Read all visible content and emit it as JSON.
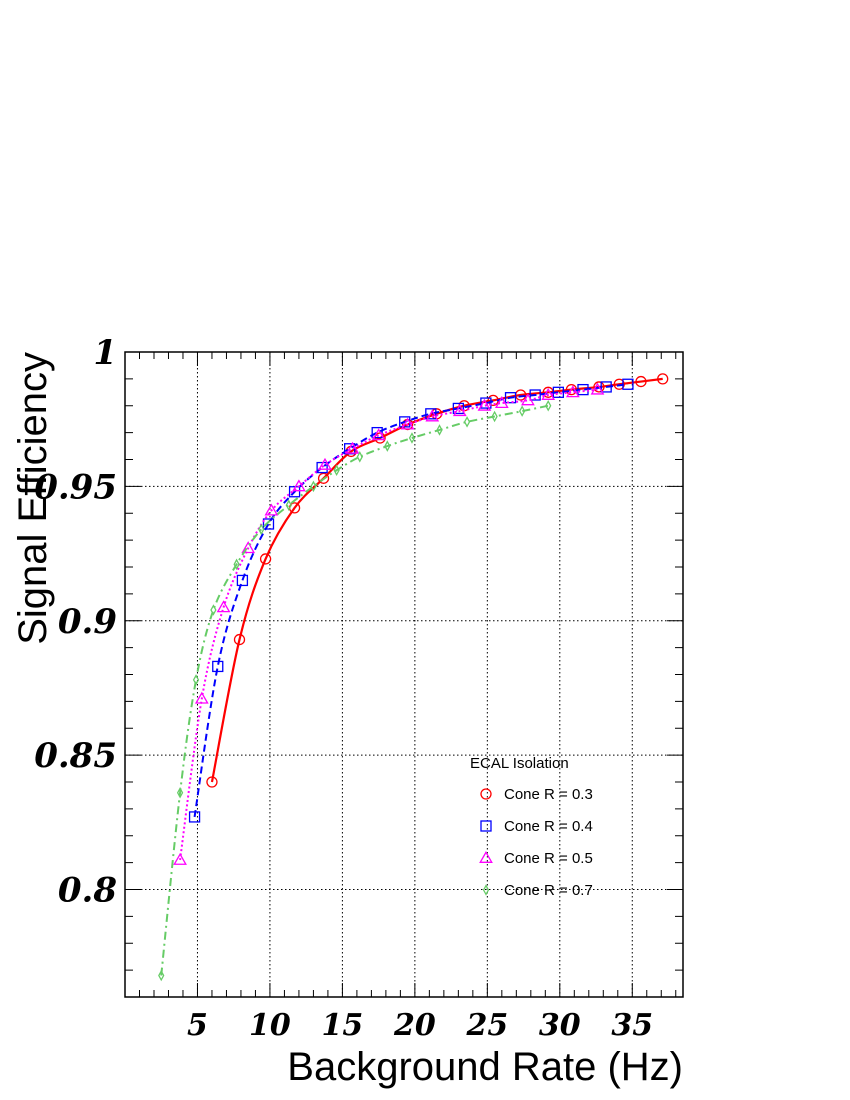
{
  "chart_data": {
    "type": "line",
    "title": "",
    "xlabel": "Background Rate (Hz)",
    "ylabel": "Signal Efficiency",
    "xlim": [
      0,
      38.5
    ],
    "ylim": [
      0.76,
      1.0
    ],
    "x_ticks": [
      5,
      10,
      15,
      20,
      25,
      30,
      35
    ],
    "x_tick_labels": [
      "5",
      "10",
      "15",
      "20",
      "25",
      "30",
      "35"
    ],
    "y_ticks": [
      0.8,
      0.85,
      0.9,
      0.95,
      1.0
    ],
    "y_tick_labels": [
      "0.8",
      "0.85",
      "0.9",
      "0.95",
      "1"
    ],
    "grid": true,
    "legend": {
      "title": "ECAL Isolation",
      "placement": "bottom-right"
    },
    "series": [
      {
        "name": "Cone R = 0.3",
        "color": "#ff0000",
        "marker": "circle",
        "line_style": "solid",
        "x": [
          6.0,
          7.9,
          9.7,
          11.7,
          13.7,
          15.6,
          17.6,
          19.5,
          21.5,
          23.4,
          25.4,
          27.3,
          29.2,
          30.8,
          32.7,
          34.1,
          35.6,
          37.1
        ],
        "y": [
          0.84,
          0.893,
          0.923,
          0.942,
          0.953,
          0.963,
          0.968,
          0.973,
          0.977,
          0.98,
          0.982,
          0.984,
          0.985,
          0.986,
          0.987,
          0.988,
          0.989,
          0.99
        ]
      },
      {
        "name": "Cone R = 0.4",
        "color": "#0000ff",
        "marker": "square",
        "line_style": "dashed",
        "x": [
          4.8,
          6.4,
          8.1,
          9.9,
          11.7,
          13.6,
          15.5,
          17.4,
          19.3,
          21.1,
          23.0,
          24.9,
          26.6,
          28.3,
          29.9,
          31.6,
          33.2,
          34.7
        ],
        "y": [
          0.827,
          0.883,
          0.915,
          0.936,
          0.948,
          0.957,
          0.964,
          0.97,
          0.974,
          0.977,
          0.979,
          0.981,
          0.983,
          0.984,
          0.985,
          0.986,
          0.987,
          0.988
        ]
      },
      {
        "name": "Cone R = 0.5",
        "color": "#ff00ff",
        "marker": "triangle",
        "line_style": "dotted",
        "x": [
          3.8,
          5.3,
          6.8,
          8.5,
          10.1,
          12.0,
          13.8,
          15.7,
          17.5,
          19.5,
          21.2,
          23.1,
          24.8,
          26.0,
          27.8,
          29.2,
          30.9,
          32.6
        ],
        "y": [
          0.811,
          0.871,
          0.905,
          0.927,
          0.941,
          0.95,
          0.958,
          0.964,
          0.969,
          0.973,
          0.976,
          0.978,
          0.98,
          0.981,
          0.982,
          0.984,
          0.985,
          0.986
        ]
      },
      {
        "name": "Cone R = 0.7",
        "color": "#66cc66",
        "marker": "diamond",
        "line_style": "dashdot",
        "x": [
          2.5,
          3.8,
          4.9,
          6.1,
          7.7,
          9.4,
          11.3,
          13.0,
          14.6,
          16.2,
          18.1,
          19.8,
          21.7,
          23.6,
          25.5,
          27.4,
          29.2
        ],
        "y": [
          0.768,
          0.836,
          0.878,
          0.904,
          0.921,
          0.934,
          0.943,
          0.95,
          0.956,
          0.961,
          0.965,
          0.968,
          0.971,
          0.974,
          0.976,
          0.978,
          0.98
        ]
      }
    ]
  }
}
